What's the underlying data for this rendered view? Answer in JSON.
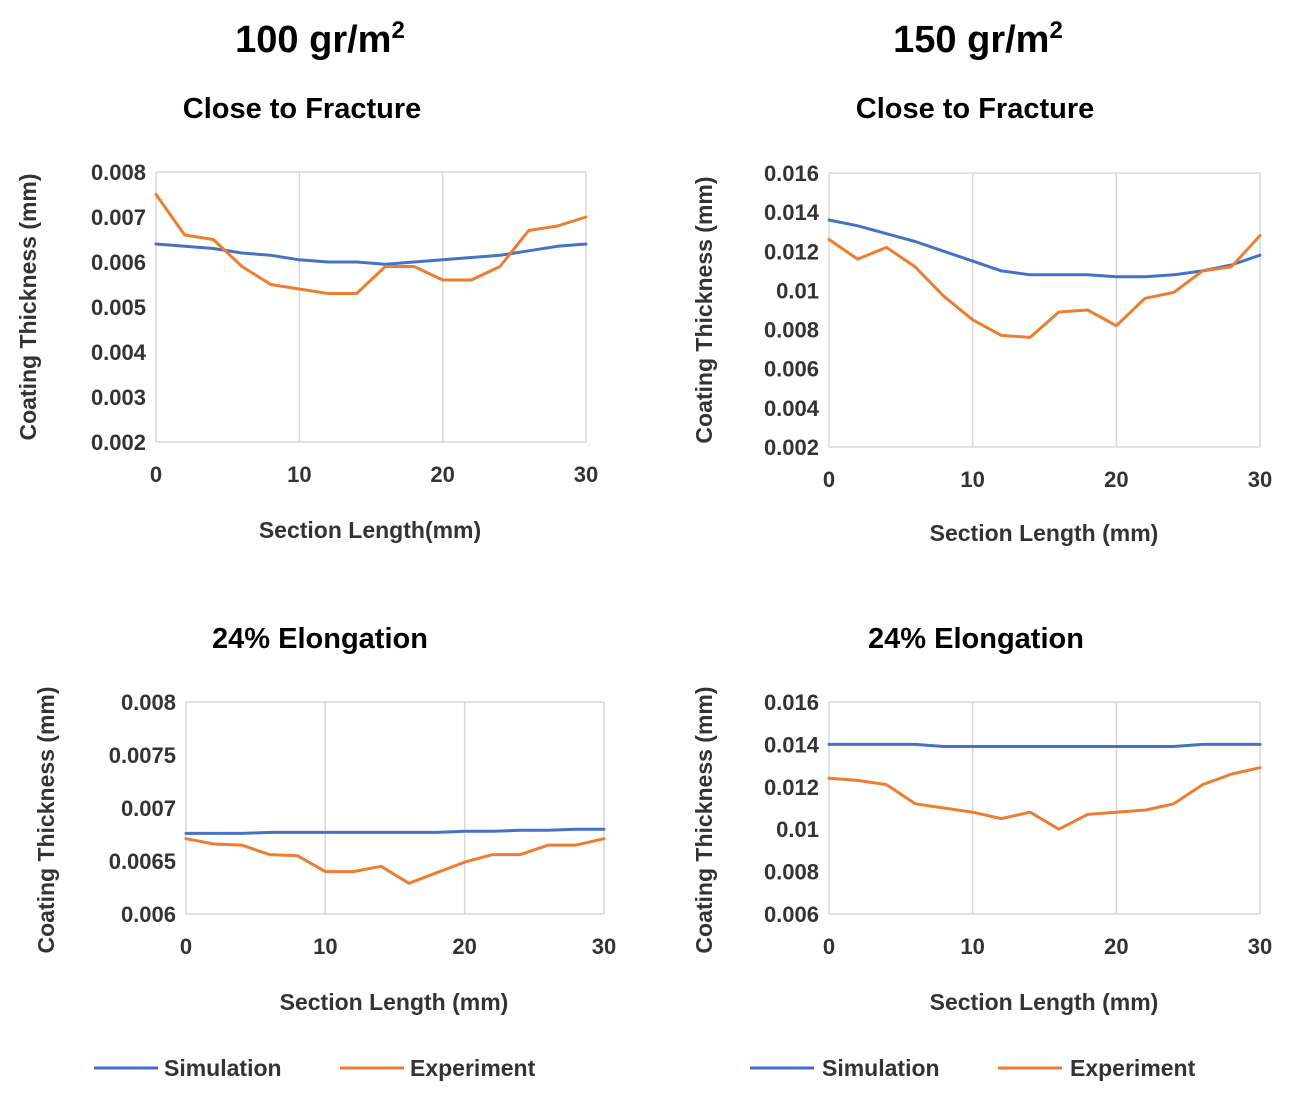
{
  "column_titles": [
    {
      "base": "100 gr/m",
      "sup": "2"
    },
    {
      "base": "150 gr/m",
      "sup": "2"
    }
  ],
  "colors": {
    "simulation": "#4472C4",
    "experiment": "#ED7D31",
    "grid": "#d9d9d9",
    "axis": "#d9d9d9"
  },
  "legends": [
    {
      "simulation": "Simulation",
      "experiment": "Experiment"
    },
    {
      "simulation": "Simulation",
      "experiment": "Experiment"
    }
  ],
  "chart_data": [
    {
      "type": "line",
      "title": "Close to Fracture",
      "xlabel": "Section Length(mm)",
      "ylabel": "Coating Thickness (mm)",
      "xlim": [
        0,
        30
      ],
      "ylim": [
        0.002,
        0.008
      ],
      "x_ticks": [
        "0",
        "10",
        "20",
        "30"
      ],
      "y_ticks": [
        "0.002",
        "0.003",
        "0.004",
        "0.005",
        "0.006",
        "0.007",
        "0.008"
      ],
      "grid": "vertical",
      "legend": "bottom",
      "x": [
        0,
        2,
        4,
        6,
        8,
        10,
        12,
        14,
        16,
        18,
        20,
        22,
        24,
        26,
        28,
        30
      ],
      "series": [
        {
          "name": "Simulation",
          "values": [
            0.0064,
            0.00635,
            0.0063,
            0.0062,
            0.00615,
            0.00605,
            0.006,
            0.006,
            0.00595,
            0.006,
            0.00605,
            0.0061,
            0.00615,
            0.00625,
            0.00635,
            0.0064
          ]
        },
        {
          "name": "Experiment",
          "values": [
            0.0075,
            0.0066,
            0.0065,
            0.0059,
            0.0055,
            0.0054,
            0.0053,
            0.0053,
            0.0059,
            0.0059,
            0.0056,
            0.0056,
            0.0059,
            0.0067,
            0.0068,
            0.007
          ]
        }
      ]
    },
    {
      "type": "line",
      "title": "Close to Fracture",
      "xlabel": "Section Length (mm)",
      "ylabel": "Coating Thickness (mm)",
      "xlim": [
        0,
        30
      ],
      "ylim": [
        0.002,
        0.016
      ],
      "x_ticks": [
        "0",
        "10",
        "20",
        "30"
      ],
      "y_ticks": [
        "0.002",
        "0.004",
        "0.006",
        "0.008",
        "0.01",
        "0.012",
        "0.014",
        "0.016"
      ],
      "grid": "vertical",
      "legend": "bottom",
      "x": [
        0,
        2,
        4,
        6,
        8,
        10,
        12,
        14,
        16,
        18,
        20,
        22,
        24,
        26,
        28,
        30
      ],
      "series": [
        {
          "name": "Simulation",
          "values": [
            0.0136,
            0.0133,
            0.0129,
            0.0125,
            0.012,
            0.0115,
            0.011,
            0.0108,
            0.0108,
            0.0108,
            0.0107,
            0.0107,
            0.0108,
            0.011,
            0.0113,
            0.0118
          ]
        },
        {
          "name": "Experiment",
          "values": [
            0.0126,
            0.0116,
            0.0122,
            0.0112,
            0.0097,
            0.0085,
            0.0077,
            0.0076,
            0.0089,
            0.009,
            0.0082,
            0.0096,
            0.0099,
            0.011,
            0.0112,
            0.0128
          ]
        }
      ]
    },
    {
      "type": "line",
      "title": "24% Elongation",
      "xlabel": "Section Length (mm)",
      "ylabel": "Coating Thickness (mm)",
      "xlim": [
        0,
        30
      ],
      "ylim": [
        0.006,
        0.008
      ],
      "x_ticks": [
        "0",
        "10",
        "20",
        "30"
      ],
      "y_ticks": [
        "0.006",
        "0.0065",
        "0.007",
        "0.0075",
        "0.008"
      ],
      "grid": "vertical",
      "legend": "bottom",
      "x": [
        0,
        2,
        4,
        6,
        8,
        10,
        12,
        14,
        16,
        18,
        20,
        22,
        24,
        26,
        28,
        30
      ],
      "series": [
        {
          "name": "Simulation",
          "values": [
            0.00676,
            0.00676,
            0.00676,
            0.00677,
            0.00677,
            0.00677,
            0.00677,
            0.00677,
            0.00677,
            0.00677,
            0.00678,
            0.00678,
            0.00679,
            0.00679,
            0.0068,
            0.0068
          ]
        },
        {
          "name": "Experiment",
          "values": [
            0.00671,
            0.00666,
            0.00665,
            0.00656,
            0.00655,
            0.0064,
            0.0064,
            0.00645,
            0.00629,
            0.00639,
            0.00649,
            0.00656,
            0.00656,
            0.00665,
            0.00665,
            0.00671
          ]
        }
      ]
    },
    {
      "type": "line",
      "title": "24% Elongation",
      "xlabel": "Section Length (mm)",
      "ylabel": "Coating Thickness (mm)",
      "xlim": [
        0,
        30
      ],
      "ylim": [
        0.006,
        0.016
      ],
      "x_ticks": [
        "0",
        "10",
        "20",
        "30"
      ],
      "y_ticks": [
        "0.006",
        "0.008",
        "0.01",
        "0.012",
        "0.014",
        "0.016"
      ],
      "grid": "vertical",
      "legend": "bottom",
      "x": [
        0,
        2,
        4,
        6,
        8,
        10,
        12,
        14,
        16,
        18,
        20,
        22,
        24,
        26,
        28,
        30
      ],
      "series": [
        {
          "name": "Simulation",
          "values": [
            0.014,
            0.014,
            0.014,
            0.014,
            0.0139,
            0.0139,
            0.0139,
            0.0139,
            0.0139,
            0.0139,
            0.0139,
            0.0139,
            0.0139,
            0.014,
            0.014,
            0.014
          ]
        },
        {
          "name": "Experiment",
          "values": [
            0.0124,
            0.0123,
            0.0121,
            0.0112,
            0.011,
            0.0108,
            0.0105,
            0.0108,
            0.01,
            0.0107,
            0.0108,
            0.0109,
            0.0112,
            0.0121,
            0.0126,
            0.0129
          ]
        }
      ]
    }
  ]
}
